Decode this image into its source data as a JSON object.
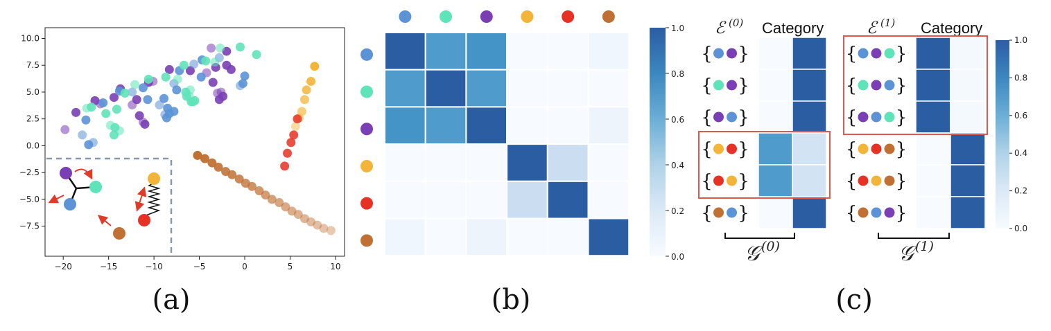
{
  "colors": {
    "blue": "#5b93d6",
    "teal": "#5fe3b8",
    "purple": "#7a3fb5",
    "yellow": "#f2b53a",
    "red": "#e63225",
    "brown": "#c07033",
    "highlight": "#e0574e",
    "dashed": "#8b96a8",
    "arrow": "#e03a28"
  },
  "captions": {
    "a": "(a)",
    "b": "(b)",
    "c": "(c)"
  },
  "chart_data": [
    {
      "panel": "a",
      "type": "scatter",
      "xlim": [
        -22,
        11
      ],
      "ylim": [
        -10.3,
        11
      ],
      "xticks": [
        -20,
        -15,
        -10,
        -5,
        0,
        5,
        10
      ],
      "yticks": [
        -7.5,
        -5.0,
        -2.5,
        0.0,
        2.5,
        5.0,
        7.5,
        10.0
      ],
      "tick_labels_x": [
        "−20",
        "−15",
        "−10",
        "−5",
        "0",
        "5",
        "10"
      ],
      "tick_labels_y": [
        "−7.5",
        "−5.0",
        "−2.5",
        "0.0",
        "2.5",
        "5.0",
        "7.5",
        "10.0"
      ],
      "series": [
        {
          "color": "purple",
          "points": [
            [
              -19.8,
              1.5
            ],
            [
              -18.6,
              3.1
            ],
            [
              -16.5,
              4.2
            ],
            [
              -15.9,
              3.9
            ],
            [
              -14.4,
              4.5
            ],
            [
              -13.7,
              5.3
            ],
            [
              -12.4,
              3.8
            ],
            [
              -11.9,
              4.3
            ],
            [
              -11.6,
              2.8
            ],
            [
              -11.2,
              2.2
            ],
            [
              -11.0,
              2.0
            ],
            [
              -10.6,
              5.9
            ],
            [
              -10.1,
              6.0
            ],
            [
              -8.3,
              7.1
            ],
            [
              -6.0,
              7.0
            ],
            [
              -4.2,
              6.8
            ],
            [
              -3.2,
              7.3
            ],
            [
              -3.5,
              5.9
            ],
            [
              -2.6,
              5.0
            ],
            [
              -2.4,
              4.6
            ],
            [
              -2.8,
              4.3
            ],
            [
              -3.0,
              4.9
            ],
            [
              -2.0,
              7.5
            ],
            [
              -1.5,
              7.1
            ],
            [
              -3.7,
              9.1
            ],
            [
              -2.0,
              8.8
            ]
          ]
        },
        {
          "color": "blue",
          "points": [
            [
              -17.9,
              1.0
            ],
            [
              -17.5,
              2.4
            ],
            [
              -17.2,
              0.1
            ],
            [
              -16.7,
              0.3
            ],
            [
              -15.6,
              4.0
            ],
            [
              -13.8,
              5.1
            ],
            [
              -12.4,
              5.0
            ],
            [
              -11.2,
              5.4
            ],
            [
              -10.7,
              4.3
            ],
            [
              -9.4,
              3.8
            ],
            [
              -8.9,
              4.4
            ],
            [
              -8.5,
              3.5
            ],
            [
              -8.8,
              2.9
            ],
            [
              -8.6,
              2.6
            ],
            [
              -8.3,
              3.0
            ],
            [
              -7.8,
              5.8
            ],
            [
              -7.5,
              5.2
            ],
            [
              -7.2,
              7.0
            ],
            [
              -5.6,
              7.6
            ],
            [
              -4.8,
              6.4
            ],
            [
              -4.7,
              8.0
            ],
            [
              -2.8,
              8.2
            ],
            [
              0.0,
              6.5
            ],
            [
              -0.2,
              5.8
            ],
            [
              -0.5,
              5.6
            ],
            [
              -7.8,
              3.2
            ]
          ]
        },
        {
          "color": "teal",
          "points": [
            [
              -17.4,
              3.5
            ],
            [
              -16.9,
              3.6
            ],
            [
              -15.3,
              3.0
            ],
            [
              -14.8,
              1.9
            ],
            [
              -14.3,
              1.7
            ],
            [
              -14.4,
              1.0
            ],
            [
              -13.8,
              1.4
            ],
            [
              -14.1,
              3.4
            ],
            [
              -13.2,
              4.9
            ],
            [
              -12.1,
              5.7
            ],
            [
              -10.6,
              6.2
            ],
            [
              -8.7,
              6.4
            ],
            [
              -7.4,
              6.2
            ],
            [
              -6.7,
              7.5
            ],
            [
              -6.5,
              5.0
            ],
            [
              -6.1,
              4.6
            ],
            [
              -5.9,
              4.1
            ],
            [
              -6.4,
              4.6
            ],
            [
              -6.0,
              5.2
            ],
            [
              -5.5,
              4.2
            ],
            [
              -4.3,
              7.9
            ],
            [
              -2.7,
              9.1
            ],
            [
              -0.5,
              9.2
            ],
            [
              1.3,
              8.5
            ],
            [
              -3.3,
              7.8
            ],
            [
              -5.7,
              4.1
            ]
          ]
        },
        {
          "color": "yellow",
          "points": [
            [
              7.7,
              7.4
            ],
            [
              7.3,
              6.0
            ],
            [
              6.8,
              5.2
            ],
            [
              6.6,
              4.3
            ],
            [
              6.3,
              3.2
            ],
            [
              6.0,
              2.6
            ],
            [
              5.6,
              1.8
            ]
          ]
        },
        {
          "color": "red",
          "points": [
            [
              4.4,
              -1.9
            ],
            [
              4.7,
              -0.7
            ],
            [
              5.1,
              0.3
            ],
            [
              5.4,
              1.0
            ],
            [
              5.8,
              2.5
            ]
          ]
        },
        {
          "color": "brown",
          "points": [
            [
              -5.2,
              -0.9
            ],
            [
              -4.4,
              -1.2
            ],
            [
              -3.6,
              -1.6
            ],
            [
              -2.9,
              -2.0
            ],
            [
              -2.1,
              -2.4
            ],
            [
              -1.4,
              -2.7
            ],
            [
              -0.6,
              -3.1
            ],
            [
              0.1,
              -3.5
            ],
            [
              0.8,
              -3.8
            ],
            [
              1.6,
              -4.2
            ],
            [
              2.3,
              -4.6
            ],
            [
              3.0,
              -5.0
            ],
            [
              3.8,
              -5.3
            ],
            [
              4.5,
              -5.7
            ],
            [
              5.2,
              -6.1
            ],
            [
              5.9,
              -6.4
            ],
            [
              6.6,
              -6.8
            ],
            [
              7.3,
              -7.1
            ],
            [
              8.0,
              -7.4
            ],
            [
              8.7,
              -7.7
            ],
            [
              9.5,
              -7.9
            ]
          ]
        }
      ]
    },
    {
      "panel": "b",
      "type": "heatmap",
      "labels": [
        "blue",
        "teal",
        "purple",
        "yellow",
        "red",
        "brown"
      ],
      "values": [
        [
          1.0,
          0.78,
          0.82,
          0.0,
          0.0,
          0.05
        ],
        [
          0.78,
          1.0,
          0.78,
          0.0,
          0.0,
          0.0
        ],
        [
          0.82,
          0.78,
          1.0,
          0.0,
          0.0,
          0.07
        ],
        [
          0.0,
          0.0,
          0.0,
          1.0,
          0.3,
          0.0
        ],
        [
          0.0,
          0.0,
          0.0,
          0.3,
          1.0,
          0.0
        ],
        [
          0.05,
          0.0,
          0.07,
          0.0,
          0.0,
          1.0
        ]
      ],
      "colorbar": {
        "range": [
          0,
          1
        ],
        "ticks": [
          "0.0",
          "0.2",
          "0.4",
          "0.6",
          "0.8",
          "1.0"
        ]
      }
    },
    {
      "panel": "c0",
      "type": "heatmap",
      "edge_label": "ℰ",
      "edge_sup": "(0)",
      "column_header": "Category",
      "group_label": "𝒢",
      "group_sup": "(0)",
      "rows": [
        [
          "blue",
          "purple"
        ],
        [
          "teal",
          "purple"
        ],
        [
          "purple",
          "blue"
        ],
        [
          "yellow",
          "red"
        ],
        [
          "red",
          "yellow"
        ],
        [
          "brown",
          "blue"
        ]
      ],
      "values": [
        [
          0.0,
          1.0
        ],
        [
          0.0,
          1.0
        ],
        [
          0.0,
          1.0
        ],
        [
          0.78,
          0.25
        ],
        [
          0.78,
          0.25
        ],
        [
          0.0,
          1.0
        ]
      ],
      "highlight_rows": [
        3,
        4
      ]
    },
    {
      "panel": "c1",
      "type": "heatmap",
      "edge_label": "ℰ",
      "edge_sup": "(1)",
      "column_header": "Category",
      "group_label": "𝒢",
      "group_sup": "(1)",
      "rows": [
        [
          "blue",
          "purple",
          "teal"
        ],
        [
          "teal",
          "purple",
          "blue"
        ],
        [
          "purple",
          "blue",
          "teal"
        ],
        [
          "yellow",
          "red",
          "brown"
        ],
        [
          "red",
          "yellow",
          "brown"
        ],
        [
          "brown",
          "blue",
          "purple"
        ]
      ],
      "values": [
        [
          1.0,
          0.02
        ],
        [
          1.0,
          0.02
        ],
        [
          1.0,
          0.02
        ],
        [
          0.0,
          1.0
        ],
        [
          0.0,
          1.0
        ],
        [
          0.0,
          1.0
        ]
      ],
      "highlight_rows": [
        0,
        1,
        2
      ],
      "colorbar": {
        "range": [
          0,
          1
        ],
        "ticks": [
          "0.0",
          "0.2",
          "0.4",
          "0.6",
          "0.8",
          "1.0"
        ]
      }
    }
  ]
}
